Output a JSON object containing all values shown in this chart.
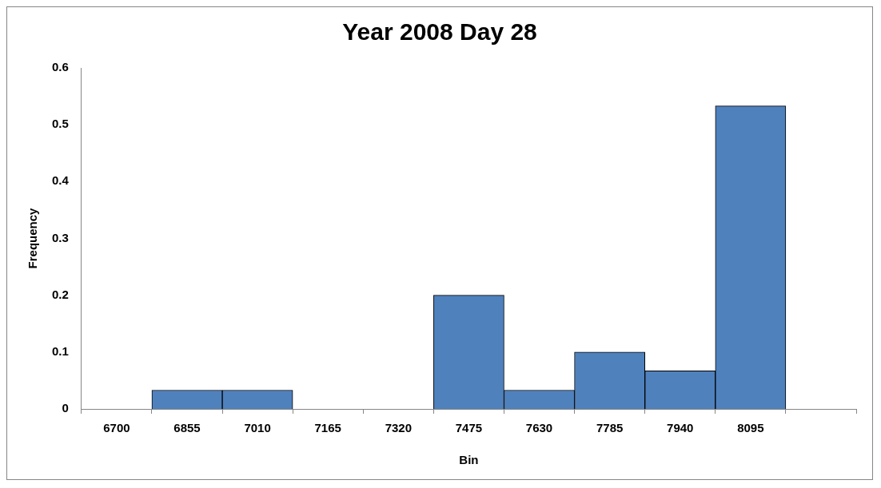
{
  "chart_data": {
    "type": "bar",
    "title": "Year 2008 Day 28",
    "xlabel": "Bin",
    "ylabel": "Frequency",
    "categories": [
      "6700",
      "6855",
      "7010",
      "7165",
      "7320",
      "7475",
      "7630",
      "7785",
      "7940",
      "8095",
      null
    ],
    "values": [
      0,
      0.033,
      0.033,
      0,
      0,
      0.2,
      0.033,
      0.1,
      0.067,
      0.533,
      0
    ],
    "color": "#4f81bd",
    "ylim": [
      0,
      0.6
    ],
    "yticks": [
      0,
      0.1,
      0.2,
      0.3,
      0.4,
      0.5,
      0.6
    ]
  }
}
